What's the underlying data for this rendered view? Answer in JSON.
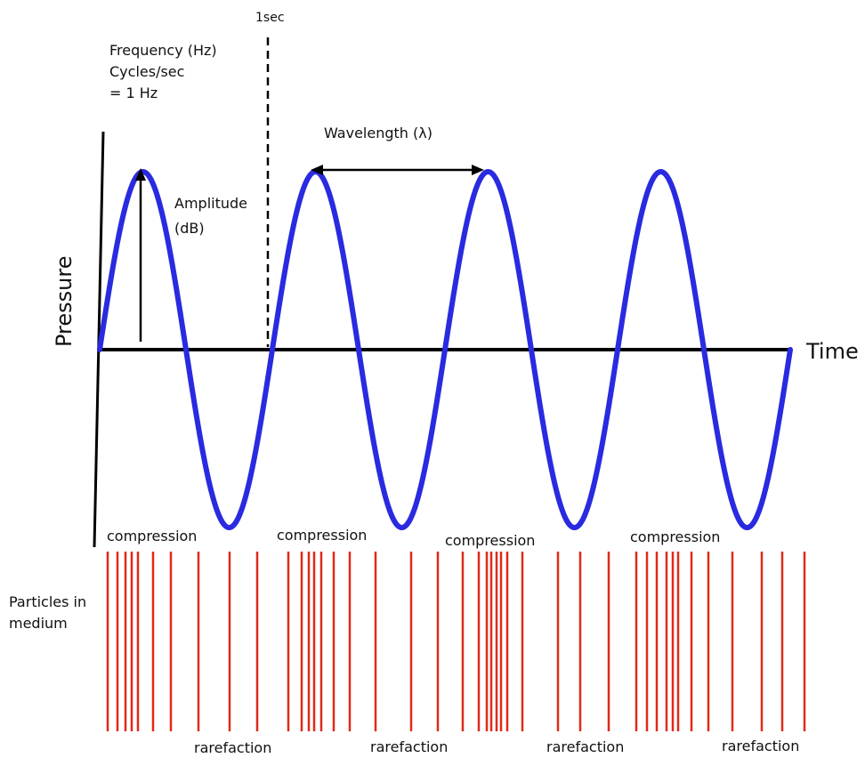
{
  "labels": {
    "one_second": "1sec",
    "frequency_line1": "Frequency (Hz)",
    "frequency_line2": "Cycles/sec",
    "frequency_line3": "= 1 Hz",
    "wavelength": "Wavelength (λ)",
    "amplitude_line1": "Amplitude",
    "amplitude_line2": "(dB)",
    "y_axis": "Pressure",
    "x_axis": "Time",
    "particles_line1": "Particles in",
    "particles_line2": "medium"
  },
  "wave": {
    "cycles": 4,
    "color": "#2a2ae0"
  },
  "particles": {
    "color": "#e02a1a"
  },
  "compression_labels": [
    "compression",
    "compression",
    "compression",
    "compression"
  ],
  "rarefaction_labels": [
    "rarefaction",
    "rarefaction",
    "rarefaction",
    "rarefaction"
  ]
}
